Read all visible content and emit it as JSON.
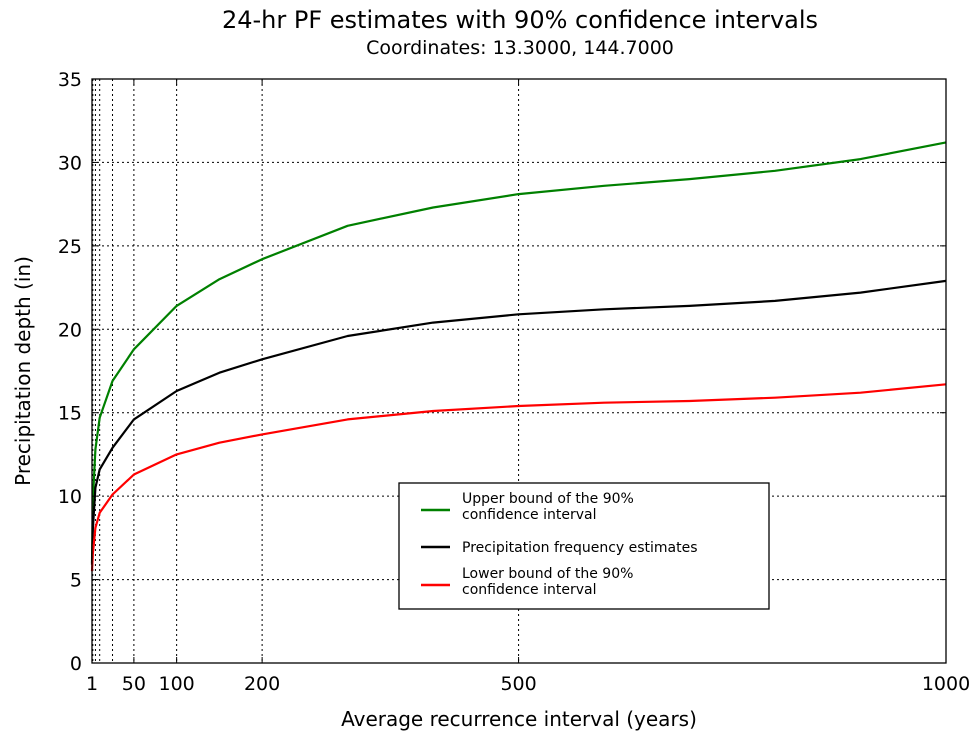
{
  "chart_data": {
    "type": "line",
    "title": "24-hr PF estimates with 90% confidence intervals",
    "subtitle": "Coordinates: 13.3000, 144.7000",
    "xlabel": "Average recurrence interval (years)",
    "ylabel": "Precipitation depth (in)",
    "xlim": [
      1,
      1000
    ],
    "ylim": [
      0,
      35
    ],
    "grid": true,
    "grid_x": [
      1,
      2,
      5,
      10,
      25,
      50,
      100,
      200,
      500,
      1000
    ],
    "grid_y": [
      5,
      10,
      15,
      20,
      25,
      30
    ],
    "x_ticks": [
      1,
      50,
      100,
      200,
      500,
      1000
    ],
    "y_ticks": [
      0,
      5,
      10,
      15,
      20,
      25,
      30,
      35
    ],
    "legend_position": "lower-right",
    "x": [
      1,
      2,
      5,
      10,
      25,
      50,
      100,
      150,
      200,
      300,
      400,
      500,
      600,
      700,
      800,
      900,
      1000
    ],
    "series": [
      {
        "name": "Upper bound of the 90% confidence interval",
        "color": "#008000",
        "values": [
          6.0,
          9.8,
          12.8,
          14.7,
          16.9,
          18.8,
          21.4,
          23.0,
          24.2,
          26.2,
          27.3,
          28.1,
          28.6,
          29.0,
          29.5,
          30.2,
          31.2
        ]
      },
      {
        "name": "Precipitation frequency estimates",
        "color": "#000000",
        "values": [
          5.9,
          8.1,
          10.5,
          11.6,
          12.9,
          14.6,
          16.3,
          17.4,
          18.2,
          19.6,
          20.4,
          20.9,
          21.2,
          21.4,
          21.7,
          22.2,
          22.9
        ]
      },
      {
        "name": "Lower bound of the 90% confidence interval",
        "color": "#ff0000",
        "values": [
          5.5,
          6.6,
          8.1,
          9.0,
          10.1,
          11.3,
          12.5,
          13.2,
          13.7,
          14.6,
          15.1,
          15.4,
          15.6,
          15.7,
          15.9,
          16.2,
          16.7
        ]
      }
    ],
    "legend_lines": [
      [
        "Upper bound of the 90%",
        "confidence interval"
      ],
      [
        "Precipitation frequency estimates"
      ],
      [
        "Lower bound of the 90%",
        "confidence interval"
      ]
    ]
  }
}
